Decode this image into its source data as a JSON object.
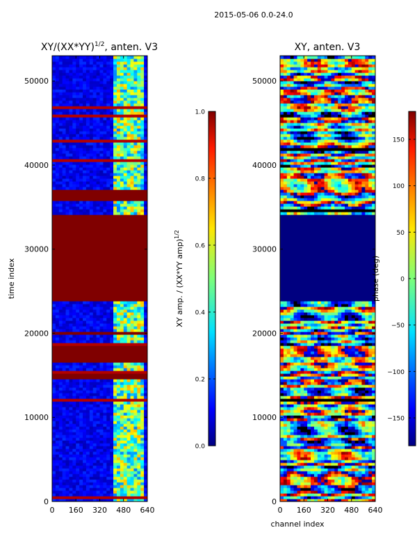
{
  "figure_title": "2015-05-06 0.0-24.0",
  "chart_data": [
    {
      "type": "heatmap",
      "title_main": "XY/(XX*YY)",
      "title_sup": "1/2",
      "title_suffix": ", anten. V3",
      "xlabel": "",
      "ylabel": "time index",
      "xlim": [
        0,
        640
      ],
      "ylim": [
        0,
        53000
      ],
      "xticks": [
        0,
        160,
        320,
        480,
        640
      ],
      "yticks": [
        0,
        10000,
        20000,
        30000,
        40000,
        50000
      ],
      "xtick_labels": [
        "0",
        "160",
        "320",
        "480",
        "640"
      ],
      "ytick_labels": [
        "0",
        "10000",
        "20000",
        "30000",
        "40000",
        "50000"
      ],
      "colorbar": {
        "label_main": "XY amp. / (XX*YY amp)",
        "label_sup": "1/2",
        "range": [
          0.0,
          1.0
        ],
        "ticks": [
          0.0,
          0.2,
          0.4,
          0.6,
          0.8,
          1.0
        ],
        "tick_labels": [
          "0.0",
          "0.2",
          "0.4",
          "0.6",
          "0.8",
          "1.0"
        ]
      },
      "flagged_time_ranges": [
        [
          24000,
          34000
        ],
        [
          35800,
          37200
        ],
        [
          14500,
          15400
        ],
        [
          16500,
          18400
        ],
        [
          19800,
          20200
        ]
      ],
      "bright_channel_range": [
        420,
        620
      ]
    },
    {
      "type": "heatmap",
      "title": "XY, anten. V3",
      "xlabel": "channel index",
      "ylabel": "",
      "xlim": [
        0,
        640
      ],
      "ylim": [
        0,
        53000
      ],
      "xticks": [
        0,
        160,
        320,
        480,
        640
      ],
      "yticks": [
        0,
        10000,
        20000,
        30000,
        40000,
        50000
      ],
      "xtick_labels": [
        "0",
        "160",
        "320",
        "480",
        "640"
      ],
      "ytick_labels": [
        "0",
        "10000",
        "20000",
        "30000",
        "40000",
        "50000"
      ],
      "colorbar": {
        "label": "phase (deg)",
        "range": [
          -180,
          180
        ],
        "ticks": [
          -150,
          -100,
          -50,
          0,
          50,
          100,
          150
        ],
        "tick_labels": [
          "−150",
          "−100",
          "−50",
          "0",
          "50",
          "100",
          "150"
        ]
      },
      "constant_time_ranges": [
        [
          24000,
          34000
        ]
      ]
    }
  ]
}
